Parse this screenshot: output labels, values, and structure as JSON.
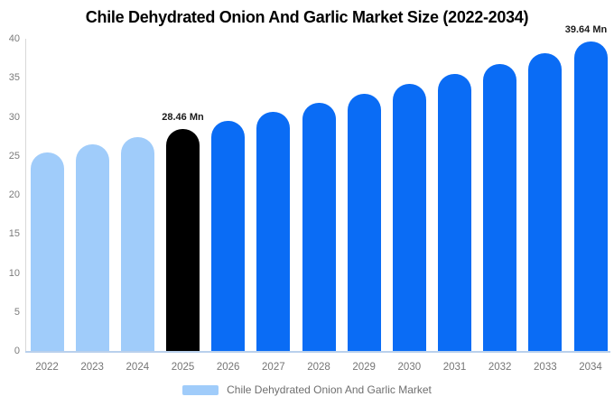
{
  "title": "Chile Dehydrated Onion And Garlic Market Size (2022-2034)",
  "legend": {
    "label": "Chile Dehydrated Onion And Garlic Market"
  },
  "colors": {
    "historical": "#a0ccfa",
    "base_year": "#000000",
    "forecast": "#0a6cf5",
    "axis_text": "#7b7b7b",
    "axis_line": "#d8d8d8",
    "baseline_line": "#b9d0ec",
    "legend_swatch": "#a0ccfa"
  },
  "chart_data": {
    "type": "bar",
    "title": "Chile Dehydrated Onion And Garlic Market Size (2022-2034)",
    "categories": [
      "2022",
      "2023",
      "2024",
      "2025",
      "2026",
      "2027",
      "2028",
      "2029",
      "2030",
      "2031",
      "2032",
      "2033",
      "2034"
    ],
    "series": [
      {
        "name": "Chile Dehydrated Onion And Garlic Market",
        "values": [
          25.48,
          26.44,
          27.43,
          28.46,
          29.53,
          30.63,
          31.78,
          32.97,
          34.21,
          35.49,
          36.82,
          38.2,
          39.64
        ]
      }
    ],
    "bar_color_keys": [
      "historical",
      "historical",
      "historical",
      "base_year",
      "forecast",
      "forecast",
      "forecast",
      "forecast",
      "forecast",
      "forecast",
      "forecast",
      "forecast",
      "forecast"
    ],
    "annotations": [
      {
        "category": "2025",
        "text": "28.46 Mn"
      },
      {
        "category": "2034",
        "text": "39.64 Mn"
      }
    ],
    "xlabel": "",
    "ylabel": "",
    "ylim": [
      0,
      40
    ],
    "ytick_step": 5,
    "ytick_labels": [
      "0",
      "5",
      "10",
      "15",
      "20",
      "25",
      "30",
      "35",
      "40"
    ],
    "grid": false,
    "legend_position": "bottom"
  }
}
